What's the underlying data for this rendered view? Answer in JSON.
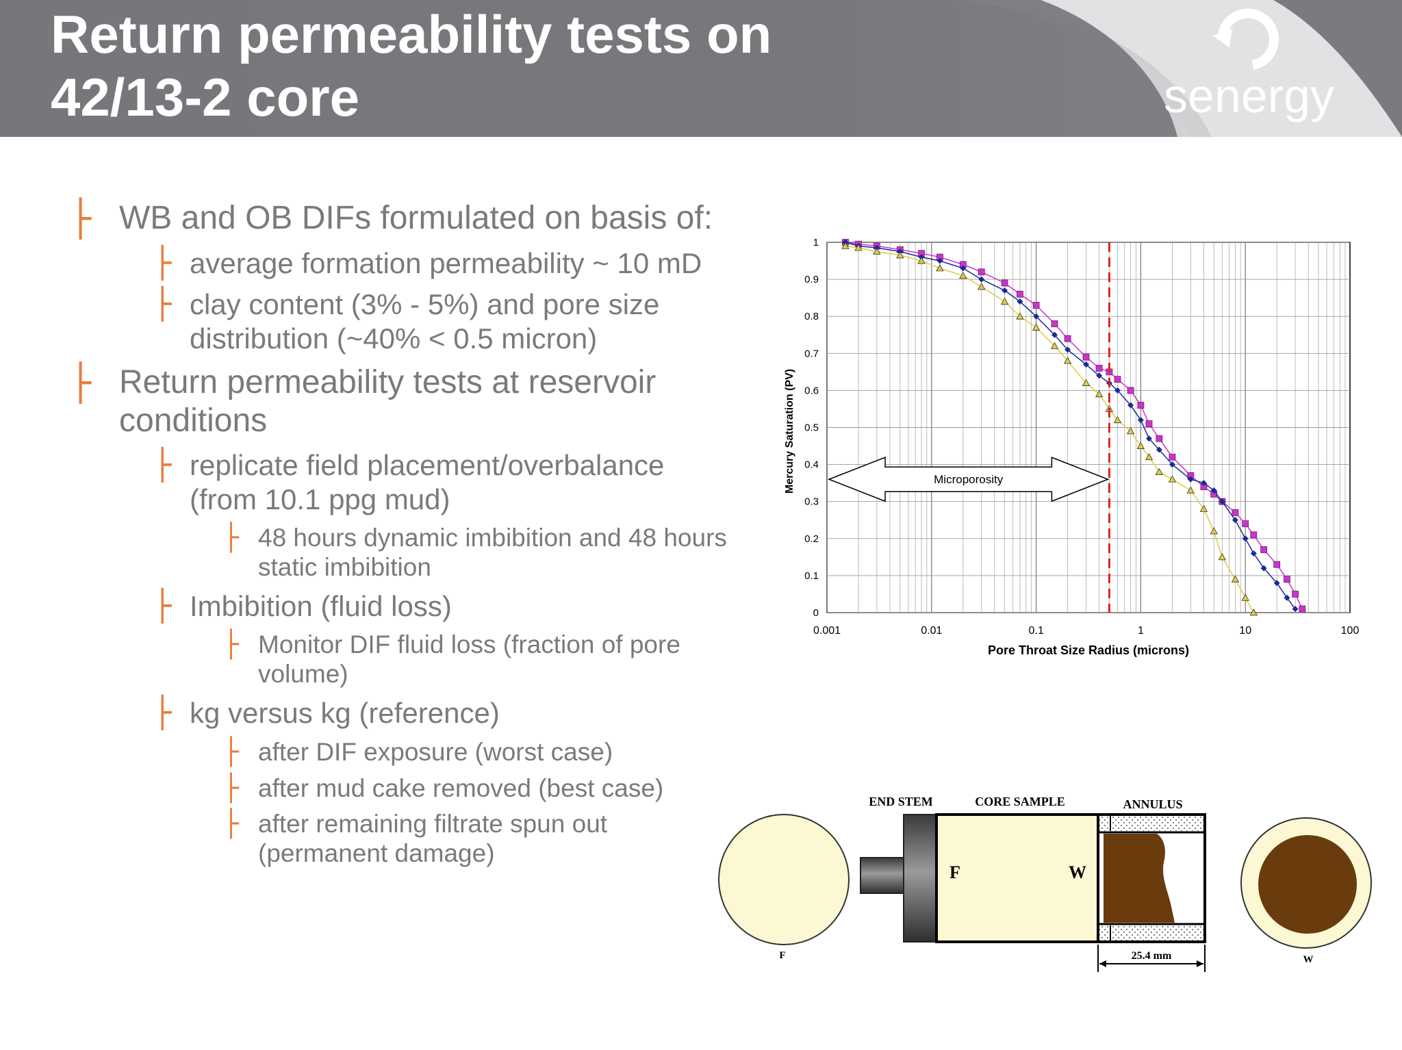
{
  "header": {
    "title_line1": "Return permeability tests on",
    "title_line2": "42/13-2 core",
    "logo_text": "senergy",
    "bg_color": "#76777b"
  },
  "bullets": [
    {
      "level": 1,
      "lines": [
        "WB and OB DIFs formulated on basis of:"
      ]
    },
    {
      "level": 2,
      "lines": [
        "average formation permeability ~ 10 mD"
      ]
    },
    {
      "level": 2,
      "lines": [
        "clay content (3% - 5%) and pore size",
        "distribution (~40% < 0.5 micron)"
      ]
    },
    {
      "level": 1,
      "lines": [
        "Return permeability tests at reservoir",
        "conditions"
      ]
    },
    {
      "level": 2,
      "lines": [
        "replicate field placement/overbalance",
        "(from 10.1 ppg mud)"
      ]
    },
    {
      "level": 3,
      "lines": [
        "48 hours dynamic imbibition and 48 hours",
        "static imbibition"
      ]
    },
    {
      "level": 2,
      "lines": [
        "Imbibition (fluid loss)"
      ]
    },
    {
      "level": 3,
      "lines": [
        "Monitor DIF fluid loss (fraction of pore",
        "volume)"
      ]
    },
    {
      "level": 2,
      "lines": [
        "kg versus kg (reference)"
      ]
    },
    {
      "level": 3,
      "lines": [
        "after DIF exposure (worst case)"
      ]
    },
    {
      "level": 3,
      "lines": [
        "after mud cake removed (best case)"
      ]
    },
    {
      "level": 3,
      "lines": [
        "after remaining filtrate spun out",
        "(permanent damage)"
      ]
    }
  ],
  "chart_data": {
    "type": "scatter",
    "title": "",
    "xlabel": "Pore Throat Size Radius (microns)",
    "ylabel": "Mercury Saturation (PV)",
    "xscale": "log",
    "xlim": [
      0.001,
      100
    ],
    "ylim": [
      0,
      1
    ],
    "xticks": [
      "0.001",
      "0.01",
      "0.1",
      "1",
      "10",
      "100"
    ],
    "yticks": [
      "0",
      "0.1",
      "0.2",
      "0.3",
      "0.4",
      "0.5",
      "0.6",
      "0.7",
      "0.8",
      "0.9",
      "1"
    ],
    "grid": true,
    "series": [
      {
        "marker": "square",
        "color": "#cc33cc",
        "x": [
          0.0015,
          0.002,
          0.003,
          0.005,
          0.008,
          0.012,
          0.02,
          0.03,
          0.05,
          0.07,
          0.1,
          0.15,
          0.2,
          0.3,
          0.4,
          0.5,
          0.6,
          0.8,
          1.0,
          1.2,
          1.5,
          2.0,
          3.0,
          4.0,
          5.0,
          6.0,
          8.0,
          10,
          12,
          15,
          20,
          25,
          30,
          35
        ],
        "y": [
          1.0,
          0.995,
          0.99,
          0.98,
          0.97,
          0.96,
          0.94,
          0.92,
          0.89,
          0.86,
          0.83,
          0.78,
          0.74,
          0.69,
          0.66,
          0.65,
          0.63,
          0.6,
          0.56,
          0.51,
          0.47,
          0.42,
          0.37,
          0.34,
          0.32,
          0.3,
          0.27,
          0.24,
          0.21,
          0.17,
          0.13,
          0.09,
          0.05,
          0.01
        ]
      },
      {
        "marker": "diamond",
        "color": "#1a2a99",
        "x": [
          0.0015,
          0.002,
          0.003,
          0.005,
          0.008,
          0.012,
          0.02,
          0.03,
          0.05,
          0.07,
          0.1,
          0.15,
          0.2,
          0.3,
          0.4,
          0.5,
          0.6,
          0.8,
          1.0,
          1.2,
          1.5,
          2.0,
          3.0,
          4.0,
          5.0,
          6.0,
          8.0,
          10,
          12,
          15,
          20,
          25,
          30
        ],
        "y": [
          1.0,
          0.99,
          0.985,
          0.975,
          0.96,
          0.95,
          0.93,
          0.9,
          0.87,
          0.84,
          0.8,
          0.75,
          0.71,
          0.67,
          0.64,
          0.62,
          0.6,
          0.56,
          0.52,
          0.47,
          0.44,
          0.4,
          0.36,
          0.35,
          0.33,
          0.3,
          0.25,
          0.2,
          0.16,
          0.12,
          0.08,
          0.04,
          0.01
        ]
      },
      {
        "marker": "triangle",
        "color": "#ddcc44",
        "x": [
          0.0015,
          0.002,
          0.003,
          0.005,
          0.008,
          0.012,
          0.02,
          0.03,
          0.05,
          0.07,
          0.1,
          0.15,
          0.2,
          0.3,
          0.4,
          0.5,
          0.6,
          0.8,
          1.0,
          1.2,
          1.5,
          2.0,
          3.0,
          4.0,
          5.0,
          6.0,
          8.0,
          10,
          12
        ],
        "y": [
          0.99,
          0.985,
          0.975,
          0.965,
          0.95,
          0.93,
          0.91,
          0.88,
          0.84,
          0.8,
          0.77,
          0.72,
          0.68,
          0.62,
          0.59,
          0.55,
          0.52,
          0.49,
          0.45,
          0.42,
          0.38,
          0.36,
          0.33,
          0.28,
          0.22,
          0.15,
          0.09,
          0.04,
          0.0
        ]
      }
    ],
    "annotations": [
      {
        "text": "Microporosity",
        "type": "double-arrow",
        "x_range": [
          0.001,
          0.5
        ],
        "y": 0.36
      },
      {
        "type": "vertical-dashed-line",
        "x": 0.5,
        "color": "#dd2222"
      }
    ]
  },
  "diagram": {
    "labels": {
      "end_stem": "END STEM",
      "core_sample": "CORE SAMPLE",
      "annulus": "ANNULUS",
      "dimension": "25.4 mm",
      "f_face": "F",
      "w_face": "W",
      "f_circle": "F",
      "w_circle": "W"
    },
    "colors": {
      "core": "#fbf8d3",
      "mud": "#6a3b0c",
      "stem": "#4a4a4a"
    }
  }
}
